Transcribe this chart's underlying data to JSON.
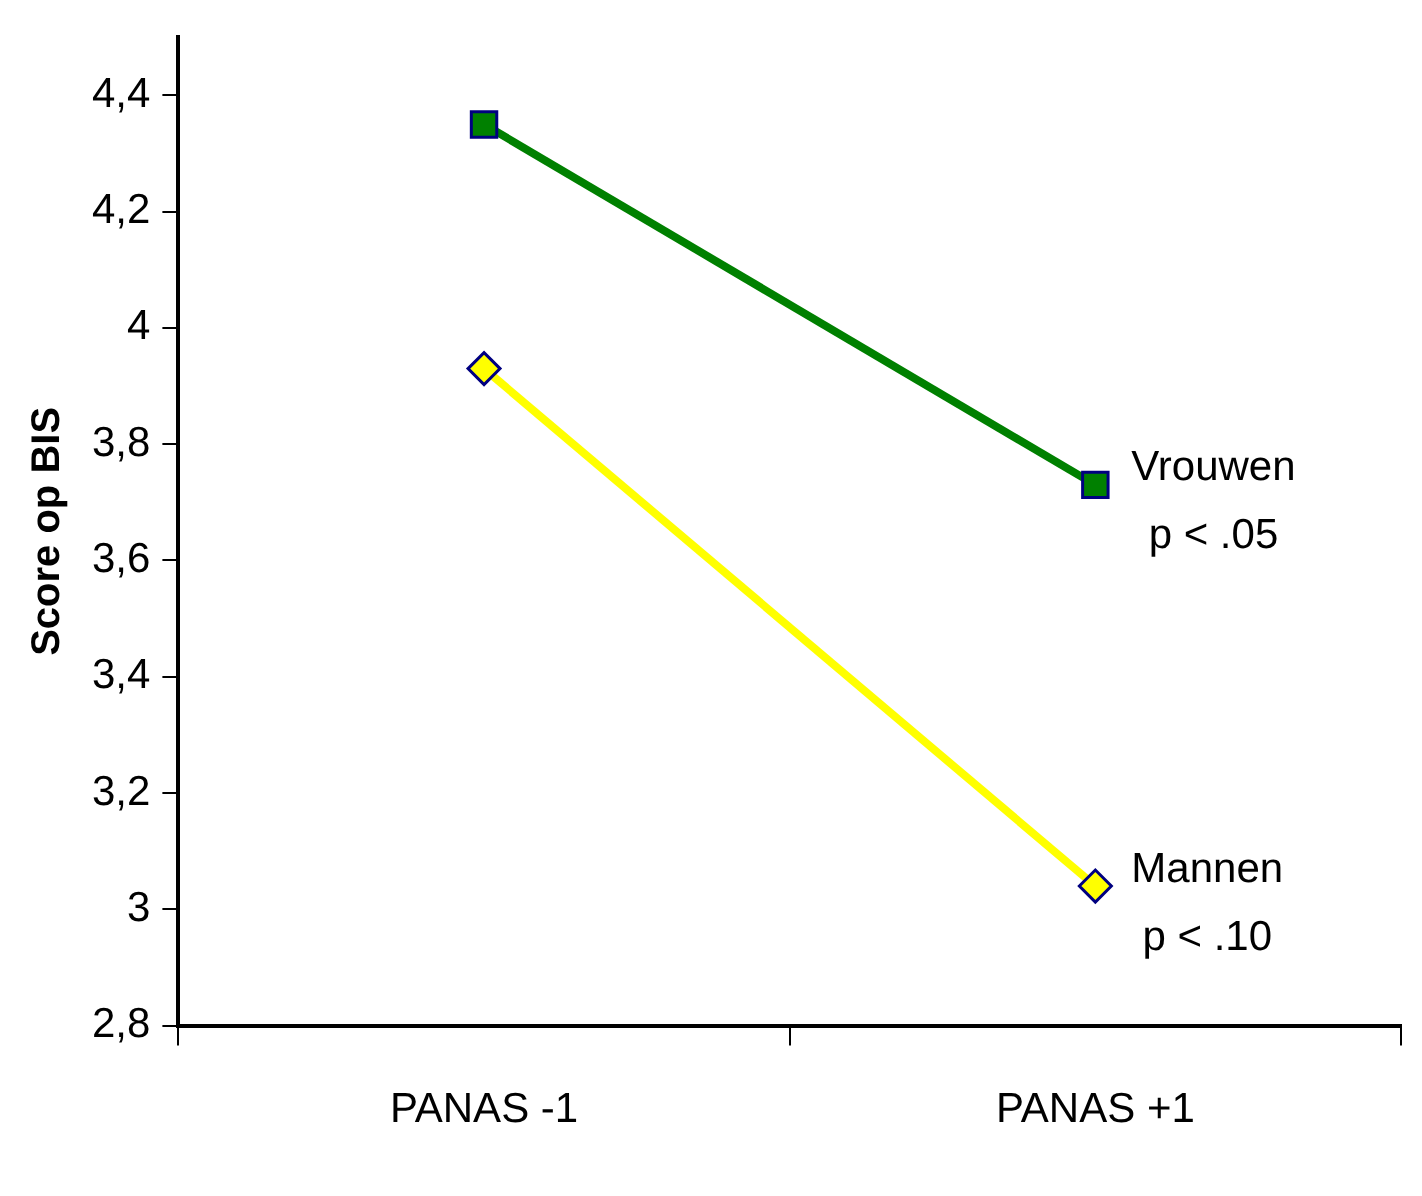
{
  "chart_data": {
    "type": "line",
    "ylabel": "Score op BIS",
    "categories": [
      "PANAS -1",
      "PANAS +1"
    ],
    "series": [
      {
        "name": "Vrouwen",
        "color": "#008000",
        "values": [
          4.35,
          3.73
        ],
        "marker": "square"
      },
      {
        "name": "Mannen",
        "color": "#ffff00",
        "values": [
          3.93,
          3.04
        ],
        "marker": "diamond"
      }
    ],
    "annotations": [
      "p < .05",
      "p < .10"
    ],
    "ylim": [
      2.8,
      4.5
    ],
    "yticks": [
      {
        "value": 2.8,
        "label": "2,8"
      },
      3,
      {
        "value": 3.2,
        "label": "3,2"
      },
      {
        "value": 3.4,
        "label": "3,4"
      },
      {
        "value": 3.6,
        "label": "3,6"
      },
      {
        "value": 3.8,
        "label": "3,8"
      },
      4,
      {
        "value": 4.2,
        "label": "4,2"
      },
      {
        "value": 4.4,
        "label": "4,4"
      }
    ],
    "grid": false,
    "legend": false,
    "line_style": "solid"
  }
}
